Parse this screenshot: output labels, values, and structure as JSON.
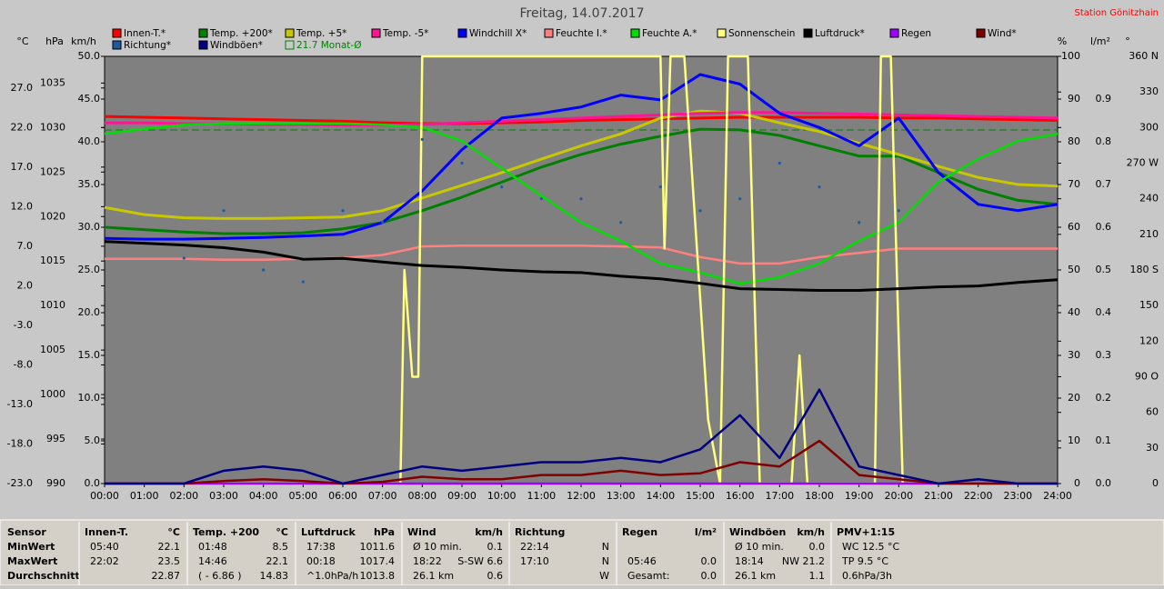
{
  "chart_data": {
    "type": "line",
    "title": "Freitag, 14.07.2017",
    "station": "Station Gönitzhain",
    "xlim": [
      0,
      24
    ],
    "xticks": [
      {
        "value": 0,
        "label": "00:00"
      },
      {
        "value": 1,
        "label": "01:00"
      },
      {
        "value": 2,
        "label": "02:00"
      },
      {
        "value": 3,
        "label": "03:00"
      },
      {
        "value": 4,
        "label": "04:00"
      },
      {
        "value": 5,
        "label": "05:00"
      },
      {
        "value": 6,
        "label": "06:00"
      },
      {
        "value": 7,
        "label": "07:00"
      },
      {
        "value": 8,
        "label": "08:00"
      },
      {
        "value": 9,
        "label": "09:00"
      },
      {
        "value": 10,
        "label": "10:00"
      },
      {
        "value": 11,
        "label": "11:00"
      },
      {
        "value": 12,
        "label": "12:00"
      },
      {
        "value": 13,
        "label": "13:00"
      },
      {
        "value": 14,
        "label": "14:00"
      },
      {
        "value": 15,
        "label": "15:00"
      },
      {
        "value": 16,
        "label": "16:00"
      },
      {
        "value": 17,
        "label": "17:00"
      },
      {
        "value": 18,
        "label": "18:00"
      },
      {
        "value": 19,
        "label": "19:00"
      },
      {
        "value": 20,
        "label": "20:00"
      },
      {
        "value": 21,
        "label": "21:00"
      },
      {
        "value": 22,
        "label": "22:00"
      },
      {
        "value": 23,
        "label": "23:00"
      },
      {
        "value": 24,
        "label": "24:00"
      }
    ],
    "x": [
      0,
      1,
      2,
      3,
      4,
      5,
      6,
      7,
      8,
      9,
      10,
      11,
      12,
      13,
      14,
      15,
      16,
      17,
      18,
      19,
      20,
      21,
      22,
      23,
      24
    ],
    "axes": {
      "temp": {
        "label": "°C",
        "lim": [
          -23,
          31
        ],
        "ticks": [
          {
            "value": -23,
            "label": "-23.0"
          },
          {
            "value": -18,
            "label": "-18.0"
          },
          {
            "value": -13,
            "label": "-13.0"
          },
          {
            "value": -8,
            "label": "-8.0"
          },
          {
            "value": -3,
            "label": "-3.0"
          },
          {
            "value": 2,
            "label": "2.0"
          },
          {
            "value": 7,
            "label": "7.0"
          },
          {
            "value": 12,
            "label": "12.0"
          },
          {
            "value": 17,
            "label": "17.0"
          },
          {
            "value": 22,
            "label": "22.0"
          },
          {
            "value": 27,
            "label": "27.0"
          }
        ]
      },
      "pressure": {
        "label": "hPa",
        "lim": [
          990,
          1038
        ],
        "ticks": [
          990,
          995,
          1000,
          1005,
          1010,
          1015,
          1020,
          1025,
          1030,
          1035
        ]
      },
      "wind": {
        "label": "km/h",
        "lim": [
          0,
          50
        ],
        "ticks": [
          {
            "value": 0,
            "label": "0.0"
          },
          {
            "value": 5,
            "label": "5.0"
          },
          {
            "value": 10,
            "label": "10.0"
          },
          {
            "value": 15,
            "label": "15.0"
          },
          {
            "value": 20,
            "label": "20.0"
          },
          {
            "value": 25,
            "label": "25.0"
          },
          {
            "value": 30,
            "label": "30.0"
          },
          {
            "value": 35,
            "label": "35.0"
          },
          {
            "value": 40,
            "label": "40.0"
          },
          {
            "value": 45,
            "label": "45.0"
          },
          {
            "value": 50,
            "label": "50.0"
          }
        ]
      },
      "humidity": {
        "label": "%",
        "lim": [
          0,
          100
        ],
        "ticks": [
          0,
          10,
          20,
          30,
          40,
          50,
          60,
          70,
          80,
          90,
          100
        ]
      },
      "rain": {
        "label": "l/m²",
        "lim": [
          0,
          1
        ],
        "ticks": [
          {
            "value": 0,
            "label": "0.0"
          },
          0.1,
          0.2,
          0.3,
          0.4,
          0.5,
          0.6,
          0.7,
          0.8,
          0.9
        ]
      },
      "direction": {
        "label": "°",
        "lim": [
          0,
          360
        ],
        "ticks": [
          0,
          30,
          60,
          {
            "value": 90,
            "label": "90 O"
          },
          120,
          150,
          {
            "value": 180,
            "label": "180 S"
          },
          210,
          240,
          {
            "value": 270,
            "label": "270 W"
          },
          300,
          330,
          {
            "value": 360,
            "label": "360 N"
          }
        ]
      }
    },
    "series": [
      {
        "name": "Innen-T.*",
        "color": "#ff0000",
        "axis": "temp",
        "values": [
          23.4,
          23.3,
          23.2,
          23.1,
          23.0,
          22.9,
          22.8,
          22.6,
          22.5,
          22.5,
          22.6,
          22.7,
          22.9,
          23.0,
          23.1,
          23.2,
          23.3,
          23.3,
          23.3,
          23.3,
          23.2,
          23.2,
          23.1,
          23.0,
          22.9
        ]
      },
      {
        "name": "Temp. +200*",
        "color": "#008000",
        "axis": "temp",
        "values": [
          9.4,
          9.1,
          8.8,
          8.6,
          8.6,
          8.7,
          9.2,
          10.0,
          11.5,
          13.2,
          15.1,
          17.0,
          18.6,
          19.9,
          20.9,
          21.8,
          21.7,
          21.0,
          19.7,
          18.4,
          18.4,
          16.3,
          14.2,
          12.8,
          12.3
        ]
      },
      {
        "name": "Temp. +5*",
        "color": "#c8c800",
        "axis": "temp",
        "values": [
          11.9,
          11.0,
          10.6,
          10.5,
          10.5,
          10.6,
          10.7,
          11.5,
          13.1,
          14.7,
          16.3,
          18.0,
          19.7,
          21.2,
          23.2,
          24.1,
          23.8,
          22.6,
          21.5,
          20.0,
          18.6,
          17.1,
          15.7,
          14.8,
          14.6
        ]
      },
      {
        "name": "Temp. -5*",
        "color": "#ff1493",
        "axis": "temp",
        "values": [
          22.6,
          22.6,
          22.5,
          22.5,
          22.4,
          22.4,
          22.3,
          22.3,
          22.4,
          22.6,
          22.8,
          23.0,
          23.2,
          23.4,
          23.6,
          23.8,
          23.9,
          23.9,
          23.8,
          23.7,
          23.6,
          23.5,
          23.4,
          23.3,
          23.2
        ]
      },
      {
        "name": "Windchill X*",
        "color": "#0000ff",
        "axis": "temp",
        "values": [
          8.0,
          7.9,
          7.9,
          8.0,
          8.1,
          8.3,
          8.5,
          10.0,
          14.0,
          19.2,
          23.2,
          23.8,
          24.6,
          26.1,
          25.5,
          28.7,
          27.5,
          23.8,
          22.0,
          19.7,
          23.2,
          16.3,
          12.3,
          11.5,
          12.3
        ]
      },
      {
        "name": "Feuchte I.*",
        "color": "#ff8080",
        "axis": "humidity",
        "values": [
          52.6,
          52.6,
          52.6,
          52.4,
          52.4,
          52.6,
          52.8,
          53.5,
          55.5,
          55.7,
          55.7,
          55.7,
          55.7,
          55.5,
          55.3,
          53.0,
          51.5,
          51.5,
          53.0,
          54.0,
          55.0,
          55.0,
          55.0,
          55.0,
          55.0
        ]
      },
      {
        "name": "Feuchte A.*",
        "color": "#00e000",
        "axis": "humidity",
        "values": [
          81.9,
          83.0,
          84.0,
          84.3,
          84.3,
          84.3,
          84.3,
          84.0,
          83.4,
          80.2,
          73.8,
          67.4,
          61.1,
          56.8,
          51.5,
          49.4,
          46.8,
          48.3,
          51.5,
          56.8,
          61.1,
          70.6,
          76.0,
          80.2,
          81.9
        ]
      },
      {
        "name": "Sonnenschein",
        "color": "#ffff80",
        "axis": "humidity",
        "x": [
          0,
          7.45,
          7.55,
          7.75,
          7.9,
          8.0,
          14.0,
          14.1,
          14.25,
          14.6,
          15.2,
          15.5,
          15.7,
          16.2,
          16.5,
          17.3,
          17.5,
          17.7,
          19.4,
          19.55,
          19.8,
          20.1,
          24
        ],
        "values": [
          0,
          0,
          50,
          25,
          25,
          100,
          100,
          55,
          100,
          100,
          15,
          0,
          100,
          100,
          0,
          0,
          30,
          0,
          0,
          100,
          100,
          0,
          0
        ]
      },
      {
        "name": "Luftdruck*",
        "color": "#000000",
        "axis": "pressure",
        "values": [
          1017.2,
          1017.0,
          1016.8,
          1016.5,
          1016.0,
          1015.2,
          1015.3,
          1014.9,
          1014.5,
          1014.3,
          1014.0,
          1013.8,
          1013.7,
          1013.3,
          1013.0,
          1012.5,
          1011.9,
          1011.8,
          1011.7,
          1011.7,
          1011.9,
          1012.1,
          1012.2,
          1012.6,
          1012.9
        ]
      },
      {
        "name": "Regen",
        "color": "#a000ff",
        "axis": "rain",
        "values": [
          0,
          0,
          0,
          0,
          0,
          0,
          0,
          0,
          0,
          0,
          0,
          0,
          0,
          0,
          0,
          0,
          0,
          0,
          0,
          0,
          0,
          0,
          0,
          0,
          0
        ]
      },
      {
        "name": "Wind*",
        "color": "#800000",
        "axis": "wind",
        "values": [
          0,
          0,
          0,
          0.3,
          0.5,
          0.3,
          0,
          0.2,
          0.8,
          0.5,
          0.5,
          1.0,
          1.0,
          1.5,
          1.0,
          1.2,
          2.5,
          2.0,
          5.0,
          1.0,
          0.5,
          0,
          0,
          0,
          0
        ]
      },
      {
        "name": "Richtung*",
        "color": "#1e5aa0",
        "axis": "direction",
        "style": "dots",
        "values": [
          null,
          null,
          190,
          230,
          180,
          170,
          230,
          220,
          290,
          270,
          250,
          240,
          240,
          220,
          250,
          230,
          240,
          270,
          250,
          220,
          230,
          null,
          null,
          null,
          null
        ]
      },
      {
        "name": "Windböen*",
        "color": "#000080",
        "axis": "wind",
        "values": [
          0,
          0,
          0,
          1.5,
          2,
          1.5,
          0,
          1,
          2,
          1.5,
          2,
          2.5,
          2.5,
          3,
          2.5,
          4,
          8,
          3,
          11,
          2,
          1,
          0,
          0.5,
          0,
          0
        ]
      }
    ],
    "reference": {
      "name": "21.7 Monat-Ø",
      "value": 21.7,
      "axis": "temp",
      "color": "#008000"
    }
  },
  "table": {
    "row_headers": [
      "Sensor",
      "MinWert",
      "MaxWert",
      "Durchschnitt"
    ],
    "columns": [
      {
        "header": "Innen-T.",
        "unit": "°C",
        "rows": [
          {
            "time": "05:40",
            "value": "22.1"
          },
          {
            "time": "22:02",
            "value": "23.5"
          },
          {
            "value": "22.87"
          }
        ]
      },
      {
        "header": "Temp. +200",
        "unit": "°C",
        "rows": [
          {
            "time": "01:48",
            "value": "8.5"
          },
          {
            "time": "14:46",
            "value": "22.1"
          },
          {
            "time": "( - 6.86 )",
            "value": "14.83"
          }
        ]
      },
      {
        "header": "Luftdruck",
        "unit": "hPa",
        "rows": [
          {
            "time": "17:38",
            "value": "1011.6"
          },
          {
            "time": "00:18",
            "value": "1017.4"
          },
          {
            "time": "^1.0hPa/h",
            "value": "1013.8"
          }
        ]
      },
      {
        "header": "Wind",
        "unit": "km/h",
        "rows": [
          {
            "time": "Ø 10 min.",
            "value": "0.1"
          },
          {
            "time": "18:22",
            "value": "S-SW 6.6"
          },
          {
            "time": "26.1 km",
            "value": "0.6"
          }
        ]
      },
      {
        "header": "Richtung",
        "rows": [
          {
            "time": "22:14",
            "value": "N"
          },
          {
            "time": "17:10",
            "value": "N"
          },
          {
            "value": "W"
          }
        ]
      },
      {
        "header": "Regen",
        "unit": "l/m²",
        "rows": [
          {},
          {
            "time": "05:46",
            "value": "0.0"
          },
          {
            "time": "Gesamt:",
            "value": "0.0"
          }
        ]
      },
      {
        "header": "Windböen",
        "unit": "km/h",
        "rows": [
          {
            "time": "Ø 10 min.",
            "value": "0.0"
          },
          {
            "time": "18:14",
            "value": "NW 21.2"
          },
          {
            "time": "26.1 km",
            "value": "1.1"
          }
        ]
      },
      {
        "header": "PMV+1:15",
        "rows": [
          {
            "time": "WC 12.5 °C"
          },
          {
            "time": "TP 9.5 °C"
          },
          {
            "time": "0.6hPa/3h"
          }
        ]
      }
    ]
  }
}
